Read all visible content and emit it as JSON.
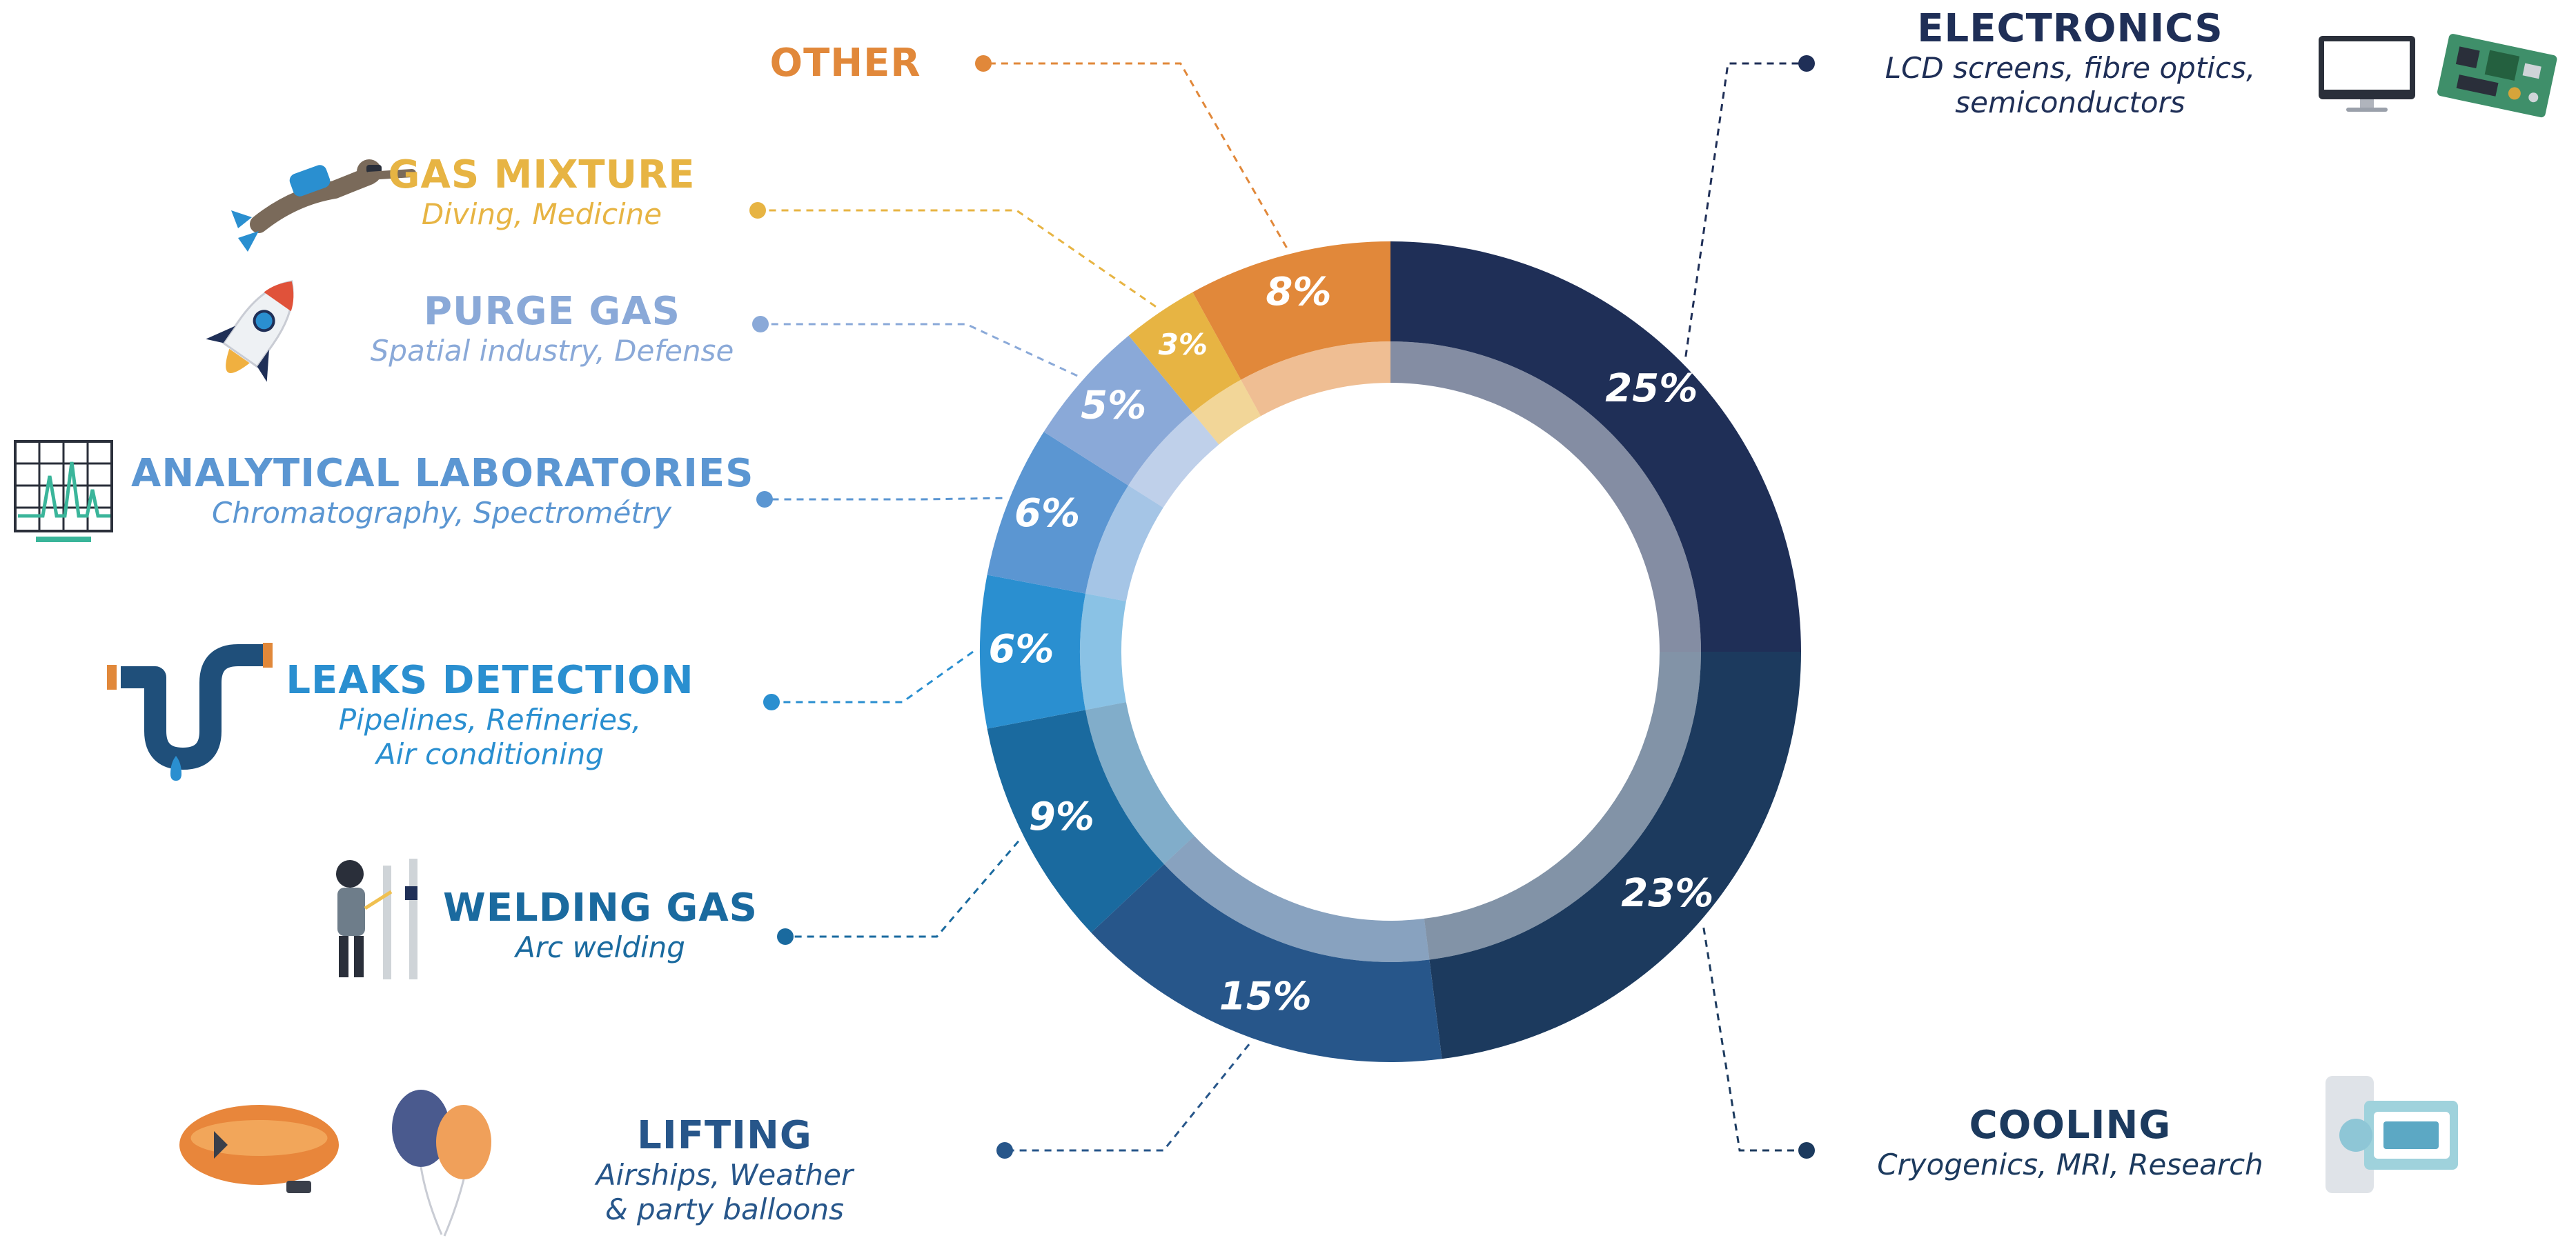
{
  "chart_data": {
    "type": "pie",
    "title": "",
    "unit": "%",
    "slices": [
      {
        "key": "electronics",
        "name": "ELECTRONICS",
        "subtitle": [
          "LCD screens, fibre optics,",
          "semiconductors"
        ],
        "value": 25,
        "label": "25%",
        "color": "#1f2f57"
      },
      {
        "key": "cooling",
        "name": "COOLING",
        "subtitle": [
          "Cryogenics, MRI, Research"
        ],
        "value": 23,
        "label": "23%",
        "color": "#1c3a5e"
      },
      {
        "key": "lifting",
        "name": "LIFTING",
        "subtitle": [
          "Airships, Weather",
          "& party balloons"
        ],
        "value": 15,
        "label": "15%",
        "color": "#27568a"
      },
      {
        "key": "welding_gas",
        "name": "WELDING GAS",
        "subtitle": [
          "Arc welding"
        ],
        "value": 9,
        "label": "9%",
        "color": "#1a6a9f"
      },
      {
        "key": "leaks_detection",
        "name": "LEAKS DETECTION",
        "subtitle": [
          "Pipelines, Refineries,",
          "Air conditioning"
        ],
        "value": 6,
        "label": "6%",
        "color": "#2a8fd0"
      },
      {
        "key": "analytical_laboratories",
        "name": "ANALYTICAL LABORATORIES",
        "subtitle": [
          "Chromatography, Spectrométry"
        ],
        "value": 6,
        "label": "6%",
        "color": "#5b96d2"
      },
      {
        "key": "purge_gas",
        "name": "PURGE GAS",
        "subtitle": [
          "Spatial industry, Defense"
        ],
        "value": 5,
        "label": "5%",
        "color": "#8aa9d8"
      },
      {
        "key": "gas_mixture",
        "name": "GAS MIXTURE",
        "subtitle": [
          "Diving, Medicine"
        ],
        "value": 3,
        "label": "3%",
        "color": "#e7b443"
      },
      {
        "key": "other",
        "name": "OTHER",
        "subtitle": [],
        "value": 8,
        "label": "8%",
        "color": "#e1883a"
      }
    ]
  },
  "icons": {
    "electronics": [
      "monitor-icon",
      "circuit-board-icon"
    ],
    "cooling": "mri-scanner-icon",
    "lifting": [
      "airship-icon",
      "balloons-icon"
    ],
    "welding_gas": "welder-icon",
    "leaks_detection": "pipe-leak-icon",
    "analytical_laboratories": "chromatogram-icon",
    "purge_gas": "rocket-icon",
    "gas_mixture": "diver-icon"
  }
}
